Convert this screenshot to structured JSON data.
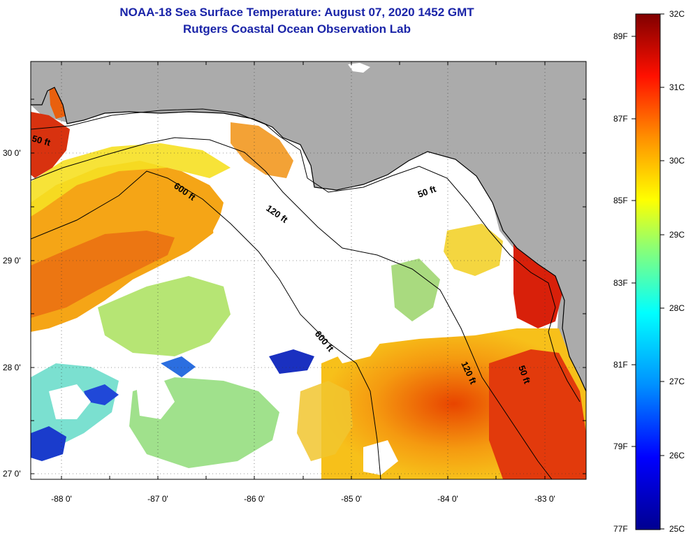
{
  "title": {
    "line1": "NOAA-18 Sea Surface Temperature:  August 07, 2020 1452 GMT",
    "line2": "Rutgers Coastal Ocean Observation Lab"
  },
  "axes": {
    "lat_labels": [
      "30 0'",
      "29 0'",
      "28 0'",
      "27 0'"
    ],
    "lon_labels": [
      "-88 0'",
      "-87 0'",
      "-86 0'",
      "-85 0'",
      "-84 0'",
      "-83 0'"
    ]
  },
  "contours": {
    "label_50": "50 ft",
    "label_120": "120 ft",
    "label_600": "600 ft"
  },
  "colorbar": {
    "celsius_labels": [
      "32C",
      "31C",
      "30C",
      "29C",
      "28C",
      "27C",
      "26C",
      "25C"
    ],
    "fahrenheit_labels": [
      "89F",
      "87F",
      "85F",
      "83F",
      "81F",
      "79F",
      "77F"
    ],
    "colors": [
      "#7a0000",
      "#ff1a00",
      "#ff7f00",
      "#ffee00",
      "#8cff73",
      "#00e8ff",
      "#0070ff",
      "#000090"
    ]
  },
  "colors": {
    "land": "#ababab",
    "cloud": "#ffffff",
    "title": "#1a24a8"
  }
}
